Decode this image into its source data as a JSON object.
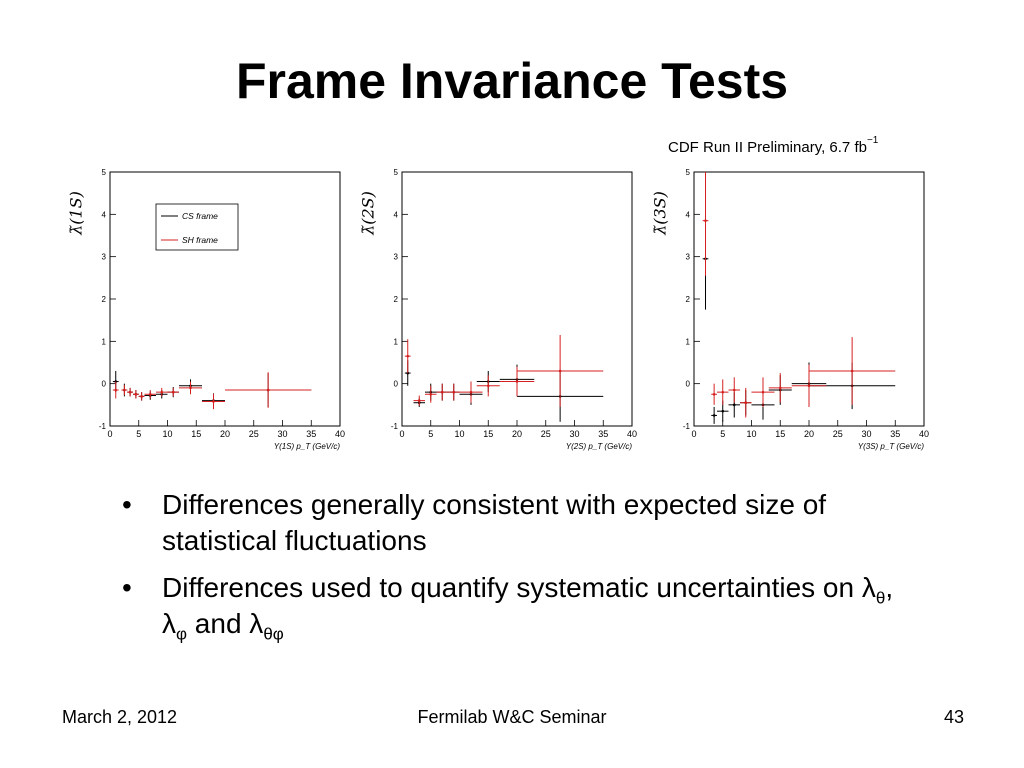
{
  "slide": {
    "title": "Frame Invariance Tests",
    "watermark": "CDF Run II Preliminary, 6.7 fb",
    "watermark_exponent": "−1",
    "bullets": [
      {
        "text": "Differences generally consistent with expected size of statistical fluctuations"
      },
      {
        "prefix": "Differences used to quantify systematic uncertainties on λ",
        "sub1": "θ",
        "mid1": ", λ",
        "sub2": "φ",
        "mid2": " and λ",
        "sub3": "θφ"
      }
    ],
    "bullet_symbol": "•"
  },
  "footer": {
    "date": "March 2, 2012",
    "event": "Fermilab W&C Seminar",
    "page": "43"
  },
  "colors": {
    "cs": "#000000",
    "sh": "#d62020"
  },
  "chart_data": [
    {
      "type": "scatter",
      "ylabel": "λ̃(1S)",
      "xlabel": "Υ(1S)  p_T  (GeV/c)",
      "xlim": [
        0,
        40
      ],
      "ylim": [
        -1,
        5
      ],
      "xticks": [
        0,
        5,
        10,
        15,
        20,
        25,
        30,
        35,
        40
      ],
      "yticks": [
        -1,
        0,
        1,
        2,
        3,
        4,
        5
      ],
      "legend": {
        "placement": "top-center",
        "entries": [
          "CS frame",
          "SH frame"
        ]
      },
      "series": [
        {
          "name": "CS frame",
          "points": [
            [
              1,
              0.05,
              0.5,
              0.25
            ],
            [
              2.5,
              -0.15,
              0.5,
              0.15
            ],
            [
              3.5,
              -0.2,
              0.5,
              0.1
            ],
            [
              4.5,
              -0.25,
              0.5,
              0.1
            ],
            [
              5.5,
              -0.3,
              0.5,
              0.1
            ],
            [
              7,
              -0.28,
              1,
              0.1
            ],
            [
              9,
              -0.25,
              1,
              0.1
            ],
            [
              11,
              -0.2,
              1,
              0.12
            ],
            [
              14,
              -0.05,
              2,
              0.15
            ],
            [
              18,
              -0.4,
              2,
              0.17
            ],
            [
              27.5,
              -0.15,
              7.5,
              0.4
            ]
          ]
        },
        {
          "name": "SH frame",
          "points": [
            [
              1,
              -0.15,
              0.5,
              0.2
            ],
            [
              2.5,
              -0.15,
              0.5,
              0.12
            ],
            [
              3.5,
              -0.2,
              0.5,
              0.1
            ],
            [
              4.5,
              -0.25,
              0.5,
              0.1
            ],
            [
              5.5,
              -0.3,
              0.5,
              0.1
            ],
            [
              7,
              -0.25,
              1,
              0.1
            ],
            [
              9,
              -0.2,
              1,
              0.1
            ],
            [
              11,
              -0.2,
              1,
              0.1
            ],
            [
              14,
              -0.1,
              2,
              0.15
            ],
            [
              18,
              -0.42,
              2,
              0.18
            ],
            [
              27.5,
              -0.15,
              7.5,
              0.42
            ]
          ]
        }
      ]
    },
    {
      "type": "scatter",
      "ylabel": "λ̃(2S)",
      "xlabel": "Υ(2S)  p_T  (GeV/c)",
      "xlim": [
        0,
        40
      ],
      "ylim": [
        -1,
        5
      ],
      "xticks": [
        0,
        5,
        10,
        15,
        20,
        25,
        30,
        35,
        40
      ],
      "yticks": [
        -1,
        0,
        1,
        2,
        3,
        4,
        5
      ],
      "series": [
        {
          "name": "CS frame",
          "points": [
            [
              1,
              0.25,
              0.5,
              0.3
            ],
            [
              3,
              -0.45,
              1,
              0.1
            ],
            [
              5,
              -0.2,
              1,
              0.2
            ],
            [
              7,
              -0.2,
              1,
              0.2
            ],
            [
              9,
              -0.2,
              1,
              0.2
            ],
            [
              12,
              -0.25,
              2,
              0.25
            ],
            [
              15,
              0.05,
              2,
              0.25
            ],
            [
              20,
              0.1,
              3,
              0.35
            ],
            [
              27.5,
              -0.3,
              7.5,
              0.6
            ]
          ]
        },
        {
          "name": "SH frame",
          "points": [
            [
              1,
              0.65,
              0.5,
              0.4
            ],
            [
              3,
              -0.4,
              1,
              0.12
            ],
            [
              5,
              -0.25,
              1,
              0.2
            ],
            [
              7,
              -0.2,
              1,
              0.2
            ],
            [
              9,
              -0.2,
              1,
              0.2
            ],
            [
              12,
              -0.2,
              2,
              0.25
            ],
            [
              15,
              -0.05,
              2,
              0.25
            ],
            [
              20,
              0.05,
              3,
              0.35
            ],
            [
              27.5,
              0.3,
              7.5,
              0.85
            ]
          ]
        }
      ]
    },
    {
      "type": "scatter",
      "ylabel": "λ̃(3S)",
      "xlabel": "Υ(3S)  p_T  (GeV/c)",
      "xlim": [
        0,
        40
      ],
      "ylim": [
        -1,
        5
      ],
      "xticks": [
        0,
        5,
        10,
        15,
        20,
        25,
        30,
        35,
        40
      ],
      "yticks": [
        -1,
        0,
        1,
        2,
        3,
        4,
        5
      ],
      "series": [
        {
          "name": "CS frame",
          "points": [
            [
              2,
              2.95,
              0.5,
              1.2
            ],
            [
              3.5,
              -0.75,
              0.5,
              0.2
            ],
            [
              5,
              -0.65,
              1,
              0.25
            ],
            [
              7,
              -0.5,
              1,
              0.3
            ],
            [
              9,
              -0.45,
              1,
              0.3
            ],
            [
              12,
              -0.5,
              2,
              0.35
            ],
            [
              15,
              -0.15,
              2,
              0.35
            ],
            [
              20,
              0,
              3,
              0.5
            ],
            [
              27.5,
              -0.05,
              7.5,
              0.55
            ]
          ]
        },
        {
          "name": "SH frame",
          "points": [
            [
              2,
              3.85,
              0.5,
              1.3
            ],
            [
              3.5,
              -0.25,
              0.5,
              0.25
            ],
            [
              5,
              -0.2,
              1,
              0.3
            ],
            [
              7,
              -0.15,
              1,
              0.3
            ],
            [
              9,
              -0.45,
              1,
              0.35
            ],
            [
              12,
              -0.2,
              2,
              0.35
            ],
            [
              15,
              -0.1,
              2,
              0.35
            ],
            [
              20,
              -0.05,
              3,
              0.5
            ],
            [
              27.5,
              0.3,
              7.5,
              0.8
            ]
          ]
        }
      ]
    }
  ]
}
